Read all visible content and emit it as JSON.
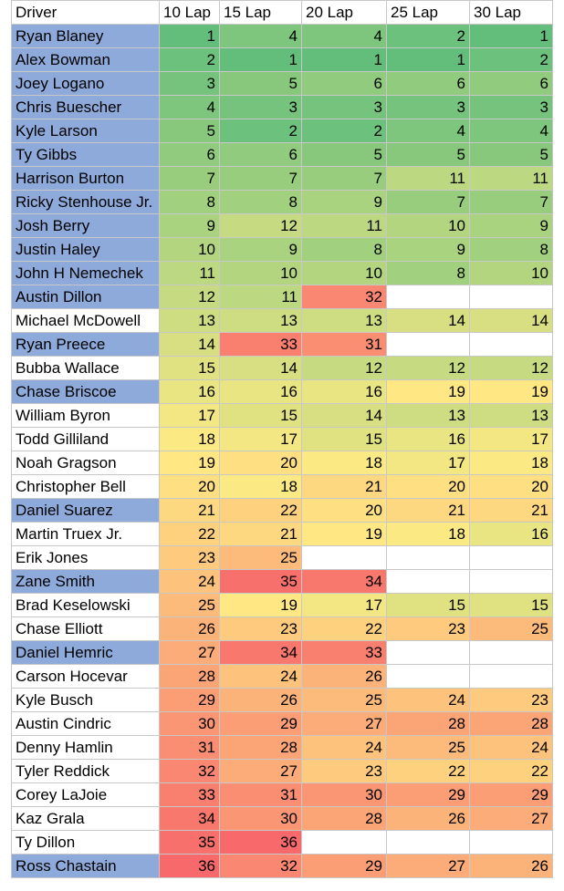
{
  "headers": [
    "Driver",
    "10 Lap",
    "15 Lap",
    "20 Lap",
    "25 Lap",
    "30 Lap"
  ],
  "highlight_color": "#8eaadb",
  "scale": {
    "min": 1,
    "max": 36,
    "low_color": "#63be7b",
    "mid_color": "#ffeb84",
    "high_color": "#f8696b"
  },
  "rows": [
    {
      "driver": "Ryan Blaney",
      "highlight": true,
      "laps": [
        1,
        4,
        4,
        2,
        1
      ]
    },
    {
      "driver": "Alex Bowman",
      "highlight": true,
      "laps": [
        2,
        1,
        1,
        1,
        2
      ]
    },
    {
      "driver": "Joey Logano",
      "highlight": true,
      "laps": [
        3,
        5,
        6,
        6,
        6
      ]
    },
    {
      "driver": "Chris Buescher",
      "highlight": true,
      "laps": [
        4,
        3,
        3,
        3,
        3
      ]
    },
    {
      "driver": "Kyle Larson",
      "highlight": true,
      "laps": [
        5,
        2,
        2,
        4,
        4
      ]
    },
    {
      "driver": "Ty Gibbs",
      "highlight": true,
      "laps": [
        6,
        6,
        5,
        5,
        5
      ]
    },
    {
      "driver": "Harrison Burton",
      "highlight": true,
      "laps": [
        7,
        7,
        7,
        11,
        11
      ]
    },
    {
      "driver": "Ricky Stenhouse Jr.",
      "highlight": true,
      "laps": [
        8,
        8,
        9,
        7,
        7
      ]
    },
    {
      "driver": "Josh Berry",
      "highlight": true,
      "laps": [
        9,
        12,
        11,
        10,
        9
      ]
    },
    {
      "driver": "Justin Haley",
      "highlight": true,
      "laps": [
        10,
        9,
        8,
        9,
        8
      ]
    },
    {
      "driver": "John H Nemechek",
      "highlight": true,
      "laps": [
        11,
        10,
        10,
        8,
        10
      ]
    },
    {
      "driver": "Austin Dillon",
      "highlight": true,
      "laps": [
        12,
        11,
        32,
        null,
        null
      ]
    },
    {
      "driver": "Michael McDowell",
      "highlight": false,
      "laps": [
        13,
        13,
        13,
        14,
        14
      ]
    },
    {
      "driver": "Ryan Preece",
      "highlight": true,
      "laps": [
        14,
        33,
        31,
        null,
        null
      ]
    },
    {
      "driver": "Bubba Wallace",
      "highlight": false,
      "laps": [
        15,
        14,
        12,
        12,
        12
      ]
    },
    {
      "driver": "Chase Briscoe",
      "highlight": true,
      "laps": [
        16,
        16,
        16,
        19,
        19
      ]
    },
    {
      "driver": "William Byron",
      "highlight": false,
      "laps": [
        17,
        15,
        14,
        13,
        13
      ]
    },
    {
      "driver": "Todd Gilliland",
      "highlight": false,
      "laps": [
        18,
        17,
        15,
        16,
        17
      ]
    },
    {
      "driver": "Noah Gragson",
      "highlight": false,
      "laps": [
        19,
        20,
        18,
        17,
        18
      ]
    },
    {
      "driver": "Christopher Bell",
      "highlight": false,
      "laps": [
        20,
        18,
        21,
        20,
        20
      ]
    },
    {
      "driver": "Daniel Suarez",
      "highlight": true,
      "laps": [
        21,
        22,
        20,
        21,
        21
      ]
    },
    {
      "driver": "Martin Truex Jr.",
      "highlight": false,
      "laps": [
        22,
        21,
        19,
        18,
        16
      ]
    },
    {
      "driver": "Erik Jones",
      "highlight": false,
      "laps": [
        23,
        25,
        null,
        null,
        null
      ]
    },
    {
      "driver": "Zane Smith",
      "highlight": true,
      "laps": [
        24,
        35,
        34,
        null,
        null
      ]
    },
    {
      "driver": "Brad Keselowski",
      "highlight": false,
      "laps": [
        25,
        19,
        17,
        15,
        15
      ]
    },
    {
      "driver": "Chase Elliott",
      "highlight": false,
      "laps": [
        26,
        23,
        22,
        23,
        25
      ]
    },
    {
      "driver": "Daniel Hemric",
      "highlight": true,
      "laps": [
        27,
        34,
        33,
        null,
        null
      ]
    },
    {
      "driver": "Carson Hocevar",
      "highlight": false,
      "laps": [
        28,
        24,
        26,
        null,
        null
      ]
    },
    {
      "driver": "Kyle Busch",
      "highlight": false,
      "laps": [
        29,
        26,
        25,
        24,
        23
      ]
    },
    {
      "driver": "Austin Cindric",
      "highlight": false,
      "laps": [
        30,
        29,
        27,
        28,
        28
      ]
    },
    {
      "driver": "Denny Hamlin",
      "highlight": false,
      "laps": [
        31,
        28,
        24,
        25,
        24
      ]
    },
    {
      "driver": "Tyler Reddick",
      "highlight": false,
      "laps": [
        32,
        27,
        23,
        22,
        22
      ]
    },
    {
      "driver": "Corey LaJoie",
      "highlight": false,
      "laps": [
        33,
        31,
        30,
        29,
        29
      ]
    },
    {
      "driver": "Kaz Grala",
      "highlight": false,
      "laps": [
        34,
        30,
        28,
        26,
        27
      ]
    },
    {
      "driver": "Ty Dillon",
      "highlight": false,
      "laps": [
        35,
        36,
        null,
        null,
        null
      ]
    },
    {
      "driver": "Ross Chastain",
      "highlight": true,
      "laps": [
        36,
        32,
        29,
        27,
        26
      ]
    }
  ]
}
